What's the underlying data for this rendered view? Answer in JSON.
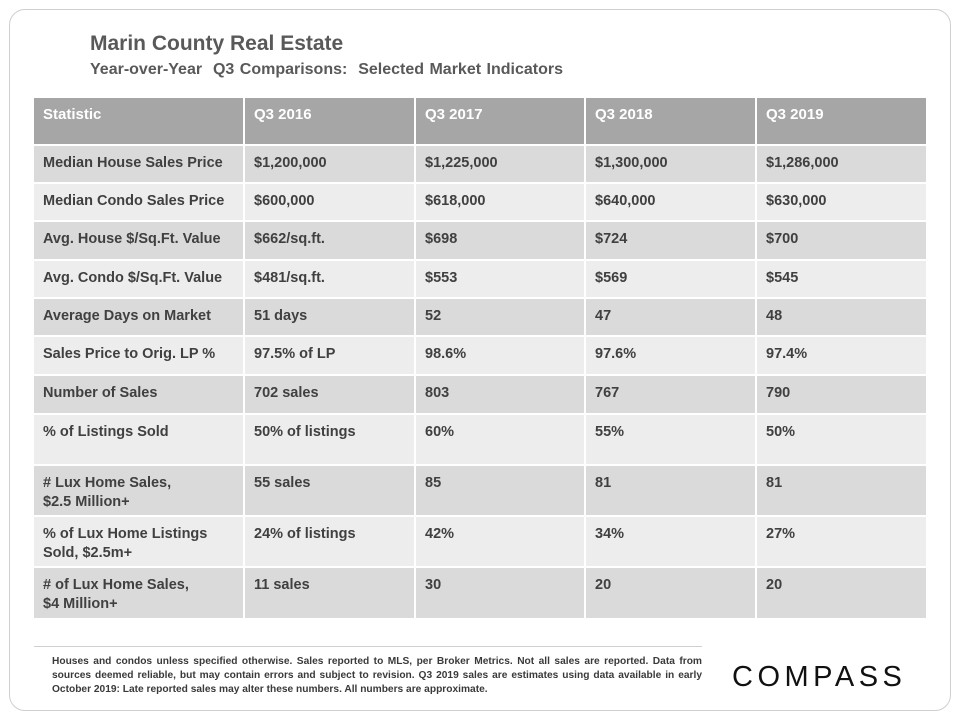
{
  "header": {
    "title": "Marin County Real Estate",
    "subtitle": "Year-over-Year  Q3 Comparisons:  Selected Market Indicators"
  },
  "table": {
    "columns": [
      "Statistic",
      "Q3 2016",
      "Q3 2017",
      "Q3 2018",
      "Q3 2019"
    ],
    "rows": [
      [
        "Median House Sales Price",
        "$1,200,000",
        "$1,225,000",
        "$1,300,000",
        "$1,286,000"
      ],
      [
        "Median Condo Sales Price",
        "$600,000",
        "$618,000",
        "$640,000",
        "$630,000"
      ],
      [
        "Avg. House $/Sq.Ft. Value",
        "$662/sq.ft.",
        "$698",
        "$724",
        "$700"
      ],
      [
        "Avg. Condo $/Sq.Ft. Value",
        "$481/sq.ft.",
        "$553",
        "$569",
        "$545"
      ],
      [
        "Average Days on Market",
        "51 days",
        "52",
        "47",
        "48"
      ],
      [
        "Sales Price to Orig. LP %",
        "97.5% of LP",
        "98.6%",
        "97.6%",
        "97.4%"
      ],
      [
        "Number of Sales",
        "702 sales",
        "803",
        "767",
        "790"
      ],
      [
        "% of Listings Sold",
        "50% of listings",
        "60%",
        "55%",
        "50%"
      ],
      [
        "# Lux Home Sales,\n$2.5 Million+",
        "55 sales",
        "85",
        "81",
        "81"
      ],
      [
        "% of Lux Home Listings\nSold, $2.5m+",
        "24% of listings",
        "42%",
        "34%",
        "27%"
      ],
      [
        "# of Lux Home Sales,\n$4 Million+",
        "11 sales",
        "30",
        "20",
        "20"
      ]
    ]
  },
  "footnote": "Houses and condos unless specified otherwise. Sales reported to MLS, per Broker Metrics. Not all sales are reported. Data from sources deemed reliable, but may contain errors and subject to revision. Q3 2019 sales are estimates using data available in early October 2019: Late reported sales may alter these numbers. All numbers are approximate.",
  "logo": {
    "text": "COMPASS",
    "icon": "compass-logo"
  }
}
